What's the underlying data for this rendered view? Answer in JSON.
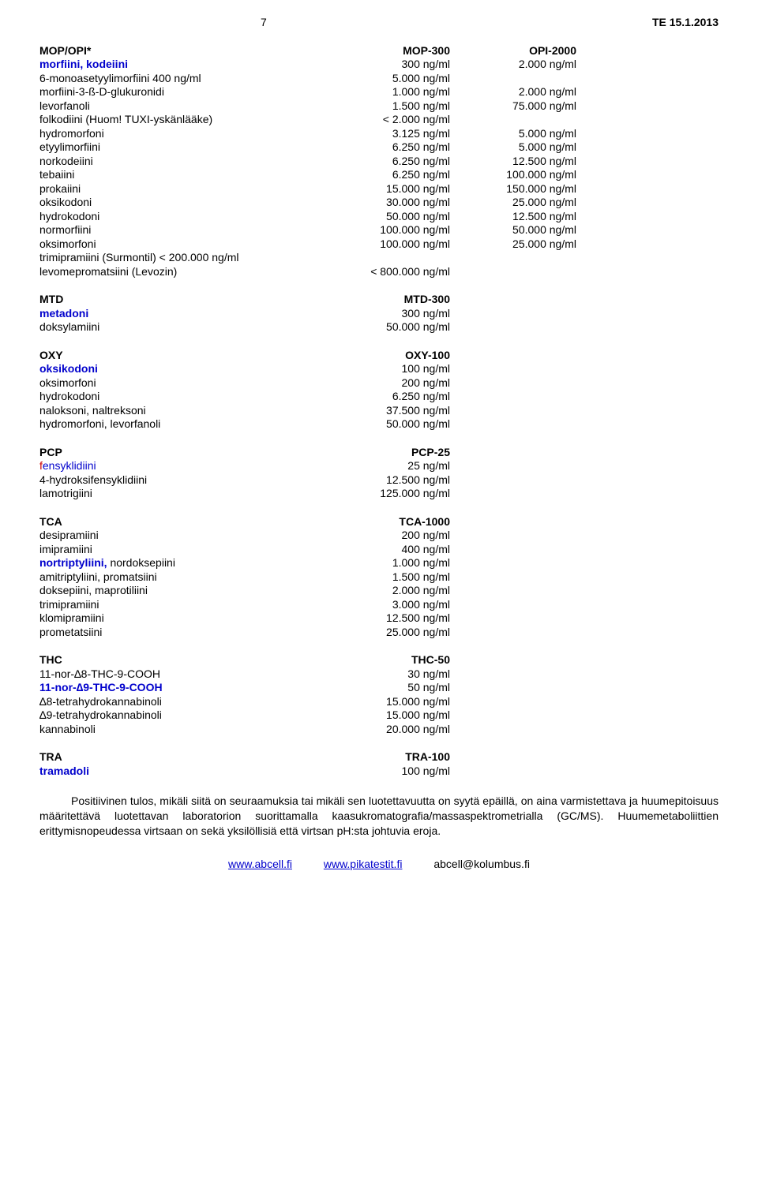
{
  "header": {
    "page_num": "7",
    "doc_ref": "TE 15.1.2013"
  },
  "mop_section": {
    "rows": [
      {
        "name": "MOP/OPI*",
        "v1": "MOP-300",
        "v2": "OPI-2000",
        "bold": true,
        "blueName": false
      },
      {
        "name": "morfiini, kodeiini",
        "v1": "300 ng/ml",
        "v2": "2.000 ng/ml",
        "blueName": true
      },
      {
        "name": "6-monoasetyylimorfiini  400 ng/ml",
        "v1": "5.000 ng/ml",
        "v2": ""
      },
      {
        "name": "morfiini-3-ß-D-glukuronidi",
        "v1": "1.000 ng/ml",
        "v2": "2.000 ng/ml"
      },
      {
        "name": "levorfanoli",
        "v1": "1.500 ng/ml",
        "v2": "75.000 ng/ml"
      },
      {
        "name": "folkodiini (Huom! TUXI-yskänlääke)",
        "v1": "< 2.000 ng/ml",
        "v2": ""
      },
      {
        "name": "hydromorfoni",
        "v1": "3.125 ng/ml",
        "v2": "5.000 ng/ml"
      },
      {
        "name": "etyylimorfiini",
        "v1": "6.250 ng/ml",
        "v2": "5.000 ng/ml"
      },
      {
        "name": "norkodeiini",
        "v1": "6.250 ng/ml",
        "v2": "12.500 ng/ml"
      },
      {
        "name": "tebaiini",
        "v1": "6.250 ng/ml",
        "v2": "100.000 ng/ml"
      },
      {
        "name": "prokaiini",
        "v1": "15.000 ng/ml",
        "v2": "150.000 ng/ml"
      },
      {
        "name": "oksikodoni",
        "v1": "30.000 ng/ml",
        "v2": "25.000 ng/ml"
      },
      {
        "name": "hydrokodoni",
        "v1": "50.000 ng/ml",
        "v2": "12.500 ng/ml"
      },
      {
        "name": "normorfiini",
        "v1": "100.000 ng/ml",
        "v2": "50.000 ng/ml"
      },
      {
        "name": "oksimorfoni",
        "v1": "100.000 ng/ml",
        "v2": "25.000 ng/ml"
      },
      {
        "name": "trimipramiini (Surmontil)  < 200.000 ng/ml",
        "v1": "",
        "v2": ""
      },
      {
        "name": "levomepromatsiini (Levozin)",
        "v1": "< 800.000 ng/ml",
        "v2": ""
      }
    ]
  },
  "mtd_section": {
    "rows": [
      {
        "name": "MTD",
        "v1": "MTD-300",
        "bold": true
      },
      {
        "name": "metadoni",
        "v1": "300 ng/ml",
        "blueName": true
      },
      {
        "name": "doksylamiini",
        "v1": "50.000 ng/ml"
      }
    ]
  },
  "oxy_section": {
    "rows": [
      {
        "name": "OXY",
        "v1": "OXY-100",
        "bold": true
      },
      {
        "name": "oksikodoni",
        "v1": "100 ng/ml",
        "blueName": true
      },
      {
        "name": "oksimorfoni",
        "v1": "200 ng/ml"
      },
      {
        "name": "hydrokodoni",
        "v1": "6.250 ng/ml"
      },
      {
        "name": "naloksoni, naltreksoni",
        "v1": "37.500 ng/ml"
      },
      {
        "name": "hydromorfoni, levorfanoli",
        "v1": "50.000 ng/ml"
      }
    ]
  },
  "pcp_section": {
    "rows": [
      {
        "name": "PCP",
        "v1": "PCP-25",
        "bold": true
      },
      {
        "name": "fensyklidiini",
        "v1": "25 ng/ml",
        "redChar": "f",
        "rest": "ensyklidiini"
      },
      {
        "name": "4-hydroksifensyklidiini",
        "v1": "12.500 ng/ml"
      },
      {
        "name": "lamotrigiini",
        "v1": "125.000 ng/ml"
      }
    ]
  },
  "tca_section": {
    "rows": [
      {
        "name": "TCA",
        "v1": "TCA-1000",
        "bold": true
      },
      {
        "name": "desipramiini",
        "v1": "200 ng/ml"
      },
      {
        "name": "imipramiini",
        "v1": "400 ng/ml"
      },
      {
        "name": "nortriptyliini, nordoksepiini",
        "v1": "1.000 ng/ml",
        "bluePart": "nortriptyliini,",
        "restPart": " nordoksepiini"
      },
      {
        "name": "amitriptyliini, promatsiini",
        "v1": "1.500 ng/ml"
      },
      {
        "name": "doksepiini, maprotiliini",
        "v1": "2.000 ng/ml"
      },
      {
        "name": "trimipramiini",
        "v1": "3.000 ng/ml"
      },
      {
        "name": "klomipramiini",
        "v1": "12.500 ng/ml"
      },
      {
        "name": "prometatsiini",
        "v1": "25.000 ng/ml"
      }
    ]
  },
  "thc_section": {
    "rows": [
      {
        "name": "THC",
        "v1": "THC-50",
        "bold": true
      },
      {
        "name": "11-nor-∆8-THC-9-COOH",
        "v1": "30 ng/ml"
      },
      {
        "name": "11-nor-∆9-THC-9-COOH",
        "v1": "50 ng/ml",
        "blueName": true,
        "boldName": true
      },
      {
        "name": "∆8-tetrahydrokannabinoli",
        "v1": "15.000 ng/ml"
      },
      {
        "name": "∆9-tetrahydrokannabinoli",
        "v1": "15.000 ng/ml"
      },
      {
        "name": "kannabinoli",
        "v1": "20.000 ng/ml"
      }
    ]
  },
  "tra_section": {
    "rows": [
      {
        "name": "TRA",
        "v1": "TRA-100",
        "bold": true
      },
      {
        "name": "tramadoli",
        "v1": "100 ng/ml",
        "blueName": true
      }
    ]
  },
  "paragraph": "Positiivinen tulos, mikäli siitä on seuraamuksia tai mikäli sen luotettavuutta on syytä epäillä, on aina varmistettava ja huumepitoisuus määritettävä luotettavan laboratorion suorittamalla kaasukromatografia/massaspektrometrialla (GC/MS). Huumemetaboliittien erittymisnopeudessa virtsaan on sekä yksilöllisiä että virtsan pH:sta johtuvia eroja.",
  "footer": {
    "link1": "www.abcell.fi",
    "link2": "www.pikatestit.fi",
    "email": "abcell@kolumbus.fi"
  }
}
